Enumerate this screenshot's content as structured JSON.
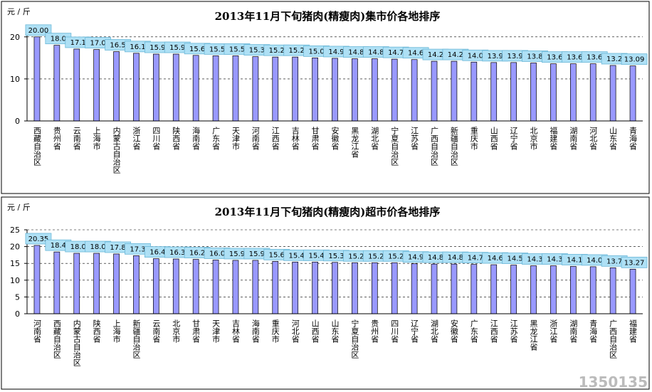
{
  "chart_data": [
    {
      "type": "bar",
      "title": "2013年11月下旬猪肉(精瘦肉)集市价各地排序",
      "y_label": "元 / 斤",
      "categories": [
        "西藏自治区",
        "贵州省",
        "云南省",
        "上海市",
        "内蒙古自治区",
        "浙江省",
        "四川省",
        "陕西省",
        "海南省",
        "广东省",
        "天津市",
        "河南省",
        "江西省",
        "吉林省",
        "甘肃省",
        "安徽省",
        "黑龙江省",
        "湖北省",
        "宁夏自治区",
        "江苏省",
        "广西自治区",
        "新疆自治区",
        "重庆市",
        "山西省",
        "辽宁省",
        "北京市",
        "福建省",
        "湖南省",
        "河北省",
        "山东省",
        "青海省"
      ],
      "values": [
        20.0,
        18.0,
        17.1,
        17.0,
        16.5,
        16.1,
        15.9,
        15.9,
        15.6,
        15.5,
        15.5,
        15.3,
        15.2,
        15.2,
        15.0,
        14.9,
        14.8,
        14.8,
        14.7,
        14.6,
        14.2,
        14.2,
        14.0,
        13.9,
        13.9,
        13.8,
        13.6,
        13.6,
        13.6,
        13.2,
        13.09
      ],
      "value_labels": [
        "20.00",
        "18.0",
        "17.1",
        "17.0",
        "16.5",
        "16.1",
        "15.9",
        "15.9",
        "15.6",
        "15.5",
        "15.5",
        "15.3",
        "15.2",
        "15.2",
        "15.0",
        "14.9",
        "14.8",
        "14.8",
        "14.7",
        "14.6",
        "14.2",
        "14.2",
        "14.0",
        "13.9",
        "13.9",
        "13.8",
        "13.6",
        "13.6",
        "13.6",
        "13.2",
        "13.09"
      ],
      "color": "#9999ff",
      "ylim": [
        0,
        22
      ],
      "yticks": [
        0,
        10,
        20
      ],
      "grid": true
    },
    {
      "type": "bar",
      "title": "2013年11月下旬猪肉(精瘦肉)超市价各地排序",
      "y_label": "元 / 斤",
      "categories": [
        "河南省",
        "西藏自治区",
        "内蒙古自治区",
        "陕西省",
        "上海市",
        "新疆自治区",
        "云南省",
        "北京市",
        "甘肃省",
        "天津市",
        "吉林省",
        "海南省",
        "重庆市",
        "河北省",
        "山西省",
        "山东省",
        "宁夏自治区",
        "贵州省",
        "四川省",
        "辽宁省",
        "湖北省",
        "安徽省",
        "广东省",
        "江西省",
        "江苏省",
        "黑龙江省",
        "浙江省",
        "湖南省",
        "青海省",
        "广西自治区",
        "福建省"
      ],
      "values": [
        20.35,
        18.4,
        18.0,
        18.0,
        17.8,
        17.3,
        16.4,
        16.3,
        16.2,
        16.0,
        15.9,
        15.9,
        15.6,
        15.4,
        15.4,
        15.3,
        15.2,
        15.2,
        15.2,
        14.9,
        14.8,
        14.8,
        14.7,
        14.6,
        14.5,
        14.3,
        14.3,
        14.1,
        14.0,
        13.7,
        13.27
      ],
      "value_labels": [
        "20.35",
        "18.4",
        "18.0",
        "18.0",
        "17.8",
        "17.3",
        "16.4",
        "16.3",
        "16.2",
        "16.0",
        "15.9",
        "15.9",
        "15.6",
        "15.4",
        "15.4",
        "15.3",
        "15.2",
        "15.2",
        "15.2",
        "14.9",
        "14.8",
        "14.8",
        "14.7",
        "14.6",
        "14.5",
        "14.3",
        "14.3",
        "14.1",
        "14.0",
        "13.7",
        "13.27"
      ],
      "color": "#9999ff",
      "ylim": [
        0,
        25
      ],
      "yticks": [
        0,
        5,
        10,
        15,
        20,
        25
      ],
      "grid": true
    }
  ],
  "watermark": "1350135"
}
